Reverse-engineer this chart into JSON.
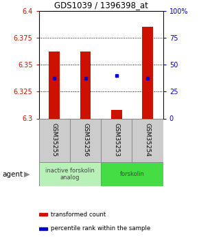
{
  "title": "GDS1039 / 1396398_at",
  "samples": [
    "GSM35255",
    "GSM35256",
    "GSM35253",
    "GSM35254"
  ],
  "bar_bottoms": [
    6.3,
    6.3,
    6.3,
    6.3
  ],
  "bar_tops": [
    6.362,
    6.362,
    6.308,
    6.385
  ],
  "blue_dots": [
    6.337,
    6.337,
    6.34,
    6.337
  ],
  "ylim": [
    6.3,
    6.4
  ],
  "yticks_left": [
    6.3,
    6.325,
    6.35,
    6.375,
    6.4
  ],
  "yticks_right": [
    0,
    25,
    50,
    75,
    100
  ],
  "groups": [
    {
      "label": "inactive forskolin\nanalog",
      "start": 0,
      "end": 2,
      "color": "#b8f0b8"
    },
    {
      "label": "forskolin",
      "start": 2,
      "end": 4,
      "color": "#44dd44"
    }
  ],
  "bar_color": "#cc1100",
  "dot_color": "#0000cc",
  "bar_width": 0.35,
  "agent_label": "agent",
  "legend": [
    {
      "label": "transformed count",
      "color": "#cc1100"
    },
    {
      "label": "percentile rank within the sample",
      "color": "#0000cc"
    }
  ],
  "bg_color": "#ffffff",
  "tick_color_left": "#cc1100",
  "tick_color_right": "#0000bb",
  "gsm_box_color": "#cccccc",
  "gsm_box_edge": "#999999"
}
